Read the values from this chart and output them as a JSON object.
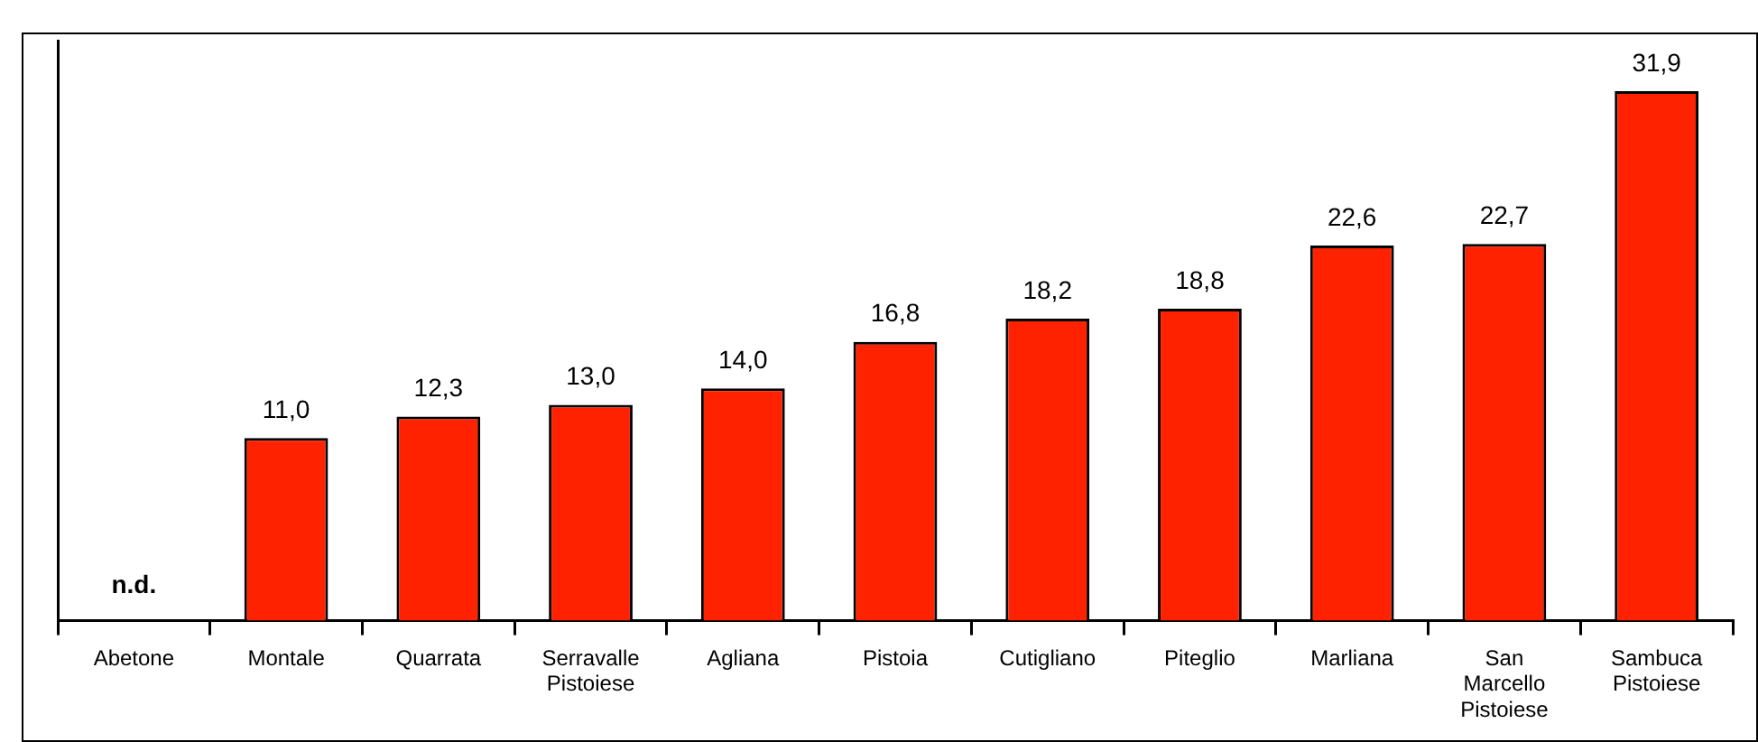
{
  "chart_data": {
    "type": "bar",
    "categories": [
      "Abetone",
      "Montale",
      "Quarrata",
      "Serravalle Pistoiese",
      "Agliana",
      "Pistoia",
      "Cutigliano",
      "Piteglio",
      "Marliana",
      "San Marcello Pistoiese",
      "Sambuca Pistoiese"
    ],
    "values": [
      null,
      11.0,
      12.3,
      13.0,
      14.0,
      16.8,
      18.2,
      18.8,
      22.6,
      22.7,
      31.9
    ],
    "value_labels": [
      "n.d.",
      "11,0",
      "12,3",
      "13,0",
      "14,0",
      "16,8",
      "18,2",
      "18,8",
      "22,6",
      "22,7",
      "31,9"
    ],
    "color": "#ff2200",
    "tick_labels": "x",
    "grid": false,
    "legend": false
  }
}
